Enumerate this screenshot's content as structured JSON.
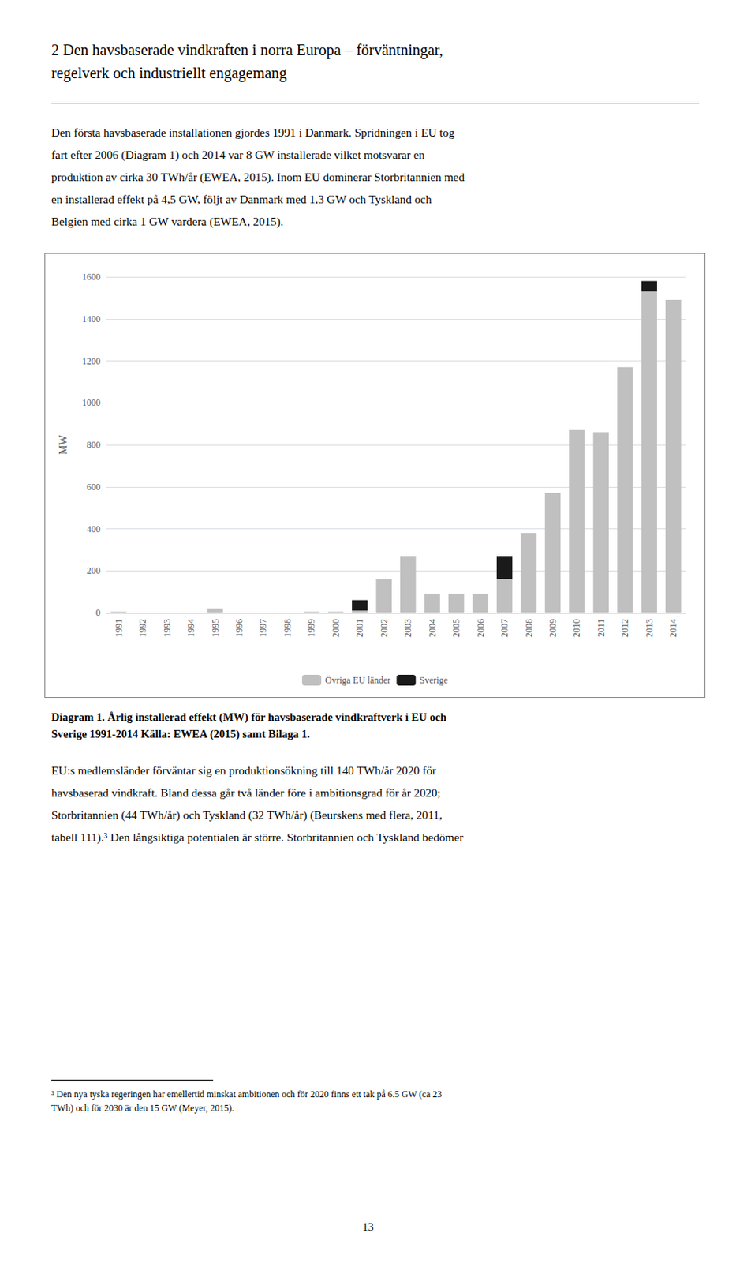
{
  "chart_data": {
    "type": "bar",
    "title": "2 Den havsbaserade vindkraften i norra Europa – förväntningar,\nregelverk och industriellt engagemang",
    "caption": "Diagram 1. Årlig installerad effekt (MW) för havsbaserade vindkraftverk i EU och\nSverige 1991-2014 Källa: EWEA (2015) samt Bilaga 1.",
    "annotations": [
      "Den första havsbaserade installationen gjordes 1991 i Danmark. Spridningen i EU tog\nfart efter 2006 (Diagram 1) och 2014 var 8 GW installerade vilket motsvarar en\nproduktion av cirka 30 TWh/år (EWEA, 2015). Inom EU dominerar Storbritannien med\nen installerad effekt på 4,5 GW, följt av Danmark med 1,3 GW och Tyskland och\nBelgien med cirka 1 GW vardera (EWEA, 2015).",
      "EU:s medlemsländer förväntar sig en produktionsökning till 140 TWh/år 2020 för\nhavsbaserad vindkraft. Bland dessa går två länder före i ambitionsgrad för år 2020;\nStorbritannien (44 TWh/år) och Tyskland (32 TWh/år) (Beurskens med flera, 2011,\ntabell 111).³ Den långsiktiga potentialen är större. Storbritannien och Tyskland bedömer",
      "³ Den nya tyska regeringen har emellertid minskat ambitionen och för 2020 finns ett tak på 6.5 GW (ca 23\nTWh) och för 2030 är den 15 GW (Meyer, 2015).",
      "13"
    ],
    "ylabel": "MW",
    "categories": [
      "1991",
      "1992",
      "1993",
      "1994",
      "1995",
      "1996",
      "1997",
      "1998",
      "1999",
      "2000",
      "2001",
      "2002",
      "2003",
      "2004",
      "2005",
      "2006",
      "2007",
      "2008",
      "2009",
      "2010",
      "2011",
      "2012",
      "2013",
      "2014"
    ],
    "series": [
      {
        "name": "Övriga EU länder",
        "color": "#c0c0c0",
        "values": [
          5,
          0,
          0,
          0,
          20,
          0,
          0,
          0,
          5,
          5,
          10,
          160,
          270,
          90,
          90,
          90,
          160,
          380,
          570,
          870,
          860,
          1170,
          1530,
          1490
        ]
      },
      {
        "name": "Sverige",
        "color": "#1a1a1a",
        "values": [
          0,
          0,
          0,
          0,
          0,
          0,
          0,
          0,
          0,
          0,
          50,
          0,
          0,
          0,
          0,
          0,
          110,
          0,
          0,
          0,
          0,
          0,
          50,
          0
        ]
      }
    ],
    "stacked": true,
    "ylim": [
      0,
      1600
    ],
    "yticks": [
      0,
      200,
      400,
      600,
      800,
      1000,
      1200,
      1400,
      1600
    ],
    "grid": true,
    "legend": "bottom"
  }
}
